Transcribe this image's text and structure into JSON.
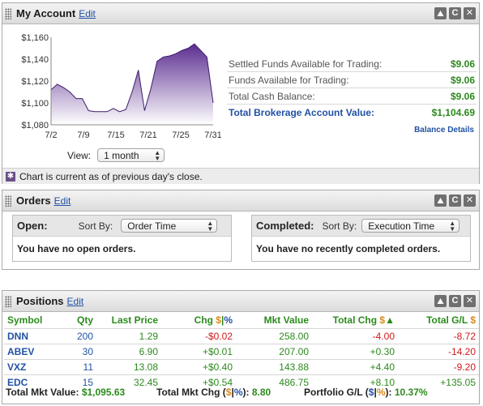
{
  "account": {
    "title": "My Account",
    "edit": "Edit",
    "rows": [
      {
        "label": "Settled Funds Available for Trading:",
        "value": "$9.06"
      },
      {
        "label": "Funds Available for Trading:",
        "value": "$9.06"
      },
      {
        "label": "Total Cash Balance:",
        "value": "$9.06"
      },
      {
        "label": "Total Brokerage Account Value:",
        "value": "$1,104.69"
      }
    ],
    "balance_link": "Balance Details",
    "view_label": "View:",
    "view_value": "1 month",
    "note": "Chart is current as of previous day's close."
  },
  "chart_data": {
    "type": "area",
    "x_ticks": [
      "7/2",
      "7/9",
      "7/15",
      "7/21",
      "7/25",
      "7/31"
    ],
    "y_ticks": [
      "$1,160",
      "$1,140",
      "$1,120",
      "$1,100",
      "$1,080"
    ],
    "ylim": [
      1080,
      1160
    ],
    "series": [
      {
        "values": [
          1112,
          1117,
          1114,
          1110,
          1104,
          1104,
          1093,
          1092,
          1092,
          1092,
          1095,
          1092,
          1094,
          1110,
          1130,
          1093,
          1113,
          1138,
          1142,
          1143,
          1145,
          1148,
          1150,
          1154,
          1148,
          1142,
          1100
        ]
      }
    ],
    "fill_color": "#5b2d90",
    "grid": false
  },
  "orders": {
    "title": "Orders",
    "edit": "Edit",
    "open": {
      "label": "Open:",
      "sort_label": "Sort By:",
      "sort_value": "Order Time",
      "message": "You have no open orders."
    },
    "completed": {
      "label": "Completed:",
      "sort_label": "Sort By:",
      "sort_value": "Execution Time",
      "message": "You have no recently completed orders."
    }
  },
  "positions": {
    "title": "Positions",
    "edit": "Edit",
    "headers": {
      "symbol": "Symbol",
      "qty": "Qty",
      "last_price": "Last Price",
      "chg": "Chg",
      "chg_dollar": "$",
      "chg_sep": "|",
      "chg_pct": "%",
      "mkt_value": "Mkt Value",
      "total_chg": "Total Chg",
      "total_chg_dollar": "$",
      "total_gl": "Total G/L",
      "total_gl_dollar": "$"
    },
    "rows": [
      {
        "symbol": "DNN",
        "qty": "200",
        "last_price": "1.29",
        "chg": "-$0.02",
        "mkt_value": "258.00",
        "total_chg": "-4.00",
        "total_gl": "-8.72"
      },
      {
        "symbol": "ABEV",
        "qty": "30",
        "last_price": "6.90",
        "chg": "+$0.01",
        "mkt_value": "207.00",
        "total_chg": "+0.30",
        "total_gl": "-14.20"
      },
      {
        "symbol": "VXZ",
        "qty": "11",
        "last_price": "13.08",
        "chg": "+$0.40",
        "mkt_value": "143.88",
        "total_chg": "+4.40",
        "total_gl": "-9.20"
      },
      {
        "symbol": "EDC",
        "qty": "15",
        "last_price": "32.45",
        "chg": "+$0.54",
        "mkt_value": "486.75",
        "total_chg": "+8.10",
        "total_gl": "+135.05"
      }
    ],
    "footer": {
      "mkt_value_label": "Total Mkt Value:",
      "mkt_value": "$1,095.63",
      "mkt_chg_label": "Total Mkt Chg (",
      "mkt_chg_dollar": "$",
      "mkt_chg_sep": "|",
      "mkt_chg_pct": "%",
      "mkt_chg_close": "):",
      "mkt_chg_value": "8.80",
      "gl_label": "Portfolio G/L (",
      "gl_dollar": "$",
      "gl_sep": "|",
      "gl_pct": "%",
      "gl_close": "):",
      "gl_value": "10.37%"
    }
  }
}
